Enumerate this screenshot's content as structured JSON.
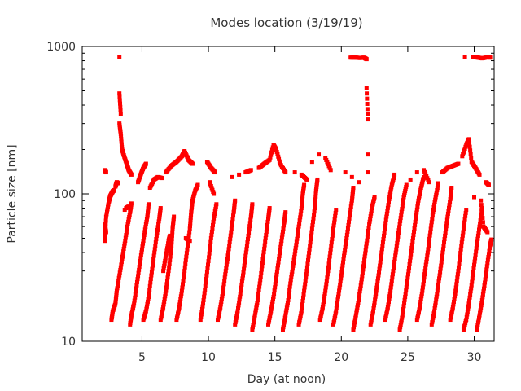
{
  "chart_data": {
    "type": "scatter",
    "title": "Modes location (3/19/19)",
    "xlabel": "Day (at noon)",
    "ylabel": "Particle size [nm]",
    "xlim": [
      0.5,
      31.5
    ],
    "ylim": [
      10,
      1000
    ],
    "y_scale": "log",
    "grid": false,
    "legend": "none",
    "x_ticks": [
      5,
      10,
      15,
      20,
      25,
      30
    ],
    "x_tick_labels": [
      "5",
      "10",
      "15",
      "20",
      "25",
      "30"
    ],
    "y_ticks": [
      10,
      100,
      1000
    ],
    "y_tick_labels": [
      "10",
      "100",
      "1000"
    ],
    "marker_color": "#ff0000",
    "series": [
      {
        "points": [
          [
            2.2,
            145
          ],
          [
            2.3,
            140
          ],
          [
            2.2,
            62
          ],
          [
            2.3,
            55
          ],
          [
            2.2,
            48
          ],
          [
            2.3,
            70
          ],
          [
            2.5,
            88
          ],
          [
            2.6,
            96
          ],
          [
            2.7,
            100
          ],
          [
            2.8,
            104
          ],
          [
            2.9,
            106
          ],
          [
            2.7,
            14
          ],
          [
            2.8,
            16
          ],
          [
            3.0,
            18
          ],
          [
            3.1,
            22
          ],
          [
            3.3,
            28
          ],
          [
            3.5,
            36
          ],
          [
            3.7,
            46
          ],
          [
            3.9,
            60
          ],
          [
            4.1,
            75
          ],
          [
            4.2,
            86
          ],
          [
            3.0,
            112
          ],
          [
            3.1,
            120
          ],
          [
            3.2,
            118
          ],
          [
            3.3,
            850
          ],
          [
            3.3,
            480
          ],
          [
            3.4,
            350
          ],
          [
            3.3,
            300
          ],
          [
            3.4,
            255
          ],
          [
            3.5,
            200
          ],
          [
            3.7,
            175
          ],
          [
            3.9,
            155
          ],
          [
            4.0,
            145
          ],
          [
            4.2,
            135
          ],
          [
            3.8,
            80
          ],
          [
            4.0,
            82
          ],
          [
            3.7,
            78
          ],
          [
            4.1,
            13
          ],
          [
            4.2,
            15
          ],
          [
            4.4,
            18
          ],
          [
            4.6,
            24
          ],
          [
            4.8,
            32
          ],
          [
            5.0,
            42
          ],
          [
            5.2,
            55
          ],
          [
            5.4,
            70
          ],
          [
            5.5,
            85
          ],
          [
            4.7,
            120
          ],
          [
            4.9,
            135
          ],
          [
            5.1,
            150
          ],
          [
            5.3,
            160
          ],
          [
            5.1,
            14
          ],
          [
            5.3,
            16
          ],
          [
            5.5,
            20
          ],
          [
            5.7,
            28
          ],
          [
            5.9,
            38
          ],
          [
            6.1,
            52
          ],
          [
            6.3,
            68
          ],
          [
            6.4,
            80
          ],
          [
            5.6,
            110
          ],
          [
            5.9,
            125
          ],
          [
            6.2,
            130
          ],
          [
            6.5,
            128
          ],
          [
            6.6,
            30
          ],
          [
            6.8,
            38
          ],
          [
            7.0,
            48
          ],
          [
            7.1,
            52
          ],
          [
            6.4,
            14
          ],
          [
            6.6,
            17
          ],
          [
            6.8,
            22
          ],
          [
            7.0,
            30
          ],
          [
            7.2,
            42
          ],
          [
            7.3,
            58
          ],
          [
            7.4,
            70
          ],
          [
            6.8,
            140
          ],
          [
            7.2,
            155
          ],
          [
            7.6,
            165
          ],
          [
            8.0,
            180
          ],
          [
            8.2,
            195
          ],
          [
            8.5,
            170
          ],
          [
            8.8,
            160
          ],
          [
            7.6,
            14
          ],
          [
            7.8,
            17
          ],
          [
            8.0,
            22
          ],
          [
            8.2,
            30
          ],
          [
            8.4,
            42
          ],
          [
            8.6,
            58
          ],
          [
            8.7,
            75
          ],
          [
            8.8,
            90
          ],
          [
            9.0,
            105
          ],
          [
            9.2,
            115
          ],
          [
            8.3,
            50
          ],
          [
            8.6,
            48
          ],
          [
            9.4,
            14
          ],
          [
            9.6,
            18
          ],
          [
            9.8,
            25
          ],
          [
            10.0,
            35
          ],
          [
            10.2,
            50
          ],
          [
            10.4,
            68
          ],
          [
            10.6,
            85
          ],
          [
            9.9,
            165
          ],
          [
            10.2,
            150
          ],
          [
            10.5,
            140
          ],
          [
            10.1,
            120
          ],
          [
            10.4,
            100
          ],
          [
            10.7,
            14
          ],
          [
            10.9,
            17
          ],
          [
            11.1,
            22
          ],
          [
            11.3,
            30
          ],
          [
            11.5,
            40
          ],
          [
            11.7,
            55
          ],
          [
            11.9,
            75
          ],
          [
            12.0,
            90
          ],
          [
            11.8,
            130
          ],
          [
            12.3,
            135
          ],
          [
            12.8,
            140
          ],
          [
            13.2,
            145
          ],
          [
            12.0,
            13
          ],
          [
            12.2,
            16
          ],
          [
            12.4,
            21
          ],
          [
            12.6,
            28
          ],
          [
            12.8,
            38
          ],
          [
            13.0,
            52
          ],
          [
            13.2,
            70
          ],
          [
            13.3,
            85
          ],
          [
            13.3,
            12
          ],
          [
            13.5,
            15
          ],
          [
            13.7,
            19
          ],
          [
            13.9,
            26
          ],
          [
            14.1,
            36
          ],
          [
            14.3,
            50
          ],
          [
            14.5,
            68
          ],
          [
            14.6,
            80
          ],
          [
            13.8,
            150
          ],
          [
            14.2,
            160
          ],
          [
            14.6,
            170
          ],
          [
            14.9,
            215
          ],
          [
            15.1,
            200
          ],
          [
            15.4,
            160
          ],
          [
            15.8,
            140
          ],
          [
            14.5,
            13
          ],
          [
            14.7,
            16
          ],
          [
            14.9,
            20
          ],
          [
            15.1,
            27
          ],
          [
            15.3,
            36
          ],
          [
            15.5,
            48
          ],
          [
            15.7,
            64
          ],
          [
            15.8,
            75
          ],
          [
            15.6,
            12
          ],
          [
            15.8,
            15
          ],
          [
            16.0,
            19
          ],
          [
            16.2,
            26
          ],
          [
            16.4,
            34
          ],
          [
            16.6,
            45
          ],
          [
            16.8,
            60
          ],
          [
            17.0,
            80
          ],
          [
            17.1,
            100
          ],
          [
            17.2,
            115
          ],
          [
            16.5,
            140
          ],
          [
            17.0,
            135
          ],
          [
            17.4,
            125
          ],
          [
            16.8,
            13
          ],
          [
            17.0,
            16
          ],
          [
            17.2,
            22
          ],
          [
            17.4,
            30
          ],
          [
            17.6,
            42
          ],
          [
            17.8,
            58
          ],
          [
            18.0,
            80
          ],
          [
            18.1,
            105
          ],
          [
            18.2,
            125
          ],
          [
            17.8,
            165
          ],
          [
            18.3,
            185
          ],
          [
            18.8,
            175
          ],
          [
            19.2,
            145
          ],
          [
            18.4,
            14
          ],
          [
            18.6,
            17
          ],
          [
            18.8,
            22
          ],
          [
            19.0,
            30
          ],
          [
            19.2,
            42
          ],
          [
            19.4,
            58
          ],
          [
            19.6,
            78
          ],
          [
            19.4,
            13
          ],
          [
            19.6,
            16
          ],
          [
            19.8,
            21
          ],
          [
            20.0,
            28
          ],
          [
            20.2,
            38
          ],
          [
            20.4,
            50
          ],
          [
            20.6,
            68
          ],
          [
            20.8,
            90
          ],
          [
            20.9,
            110
          ],
          [
            20.3,
            140
          ],
          [
            20.8,
            130
          ],
          [
            21.3,
            120
          ],
          [
            20.7,
            840
          ],
          [
            21.1,
            840
          ],
          [
            21.4,
            835
          ],
          [
            21.7,
            840
          ],
          [
            21.9,
            820
          ],
          [
            21.9,
            520
          ],
          [
            22.0,
            320
          ],
          [
            22.0,
            185
          ],
          [
            22.0,
            140
          ],
          [
            20.9,
            12
          ],
          [
            21.1,
            15
          ],
          [
            21.3,
            19
          ],
          [
            21.5,
            25
          ],
          [
            21.7,
            34
          ],
          [
            21.9,
            46
          ],
          [
            22.1,
            62
          ],
          [
            22.3,
            80
          ],
          [
            22.5,
            95
          ],
          [
            22.2,
            13
          ],
          [
            22.4,
            16
          ],
          [
            22.6,
            21
          ],
          [
            22.8,
            28
          ],
          [
            23.0,
            38
          ],
          [
            23.2,
            52
          ],
          [
            23.4,
            70
          ],
          [
            23.6,
            92
          ],
          [
            23.8,
            115
          ],
          [
            24.0,
            135
          ],
          [
            23.3,
            14
          ],
          [
            23.5,
            17
          ],
          [
            23.7,
            22
          ],
          [
            23.9,
            30
          ],
          [
            24.1,
            40
          ],
          [
            24.3,
            54
          ],
          [
            24.5,
            72
          ],
          [
            24.7,
            95
          ],
          [
            24.9,
            115
          ],
          [
            24.4,
            12
          ],
          [
            24.6,
            15
          ],
          [
            24.8,
            20
          ],
          [
            25.0,
            27
          ],
          [
            25.2,
            37
          ],
          [
            25.4,
            50
          ],
          [
            25.6,
            68
          ],
          [
            25.8,
            90
          ],
          [
            26.0,
            110
          ],
          [
            26.2,
            130
          ],
          [
            25.2,
            125
          ],
          [
            25.7,
            140
          ],
          [
            26.2,
            145
          ],
          [
            26.6,
            120
          ],
          [
            25.7,
            14
          ],
          [
            25.9,
            17
          ],
          [
            26.1,
            22
          ],
          [
            26.3,
            30
          ],
          [
            26.5,
            40
          ],
          [
            26.7,
            55
          ],
          [
            26.9,
            75
          ],
          [
            27.1,
            95
          ],
          [
            27.3,
            118
          ],
          [
            26.8,
            13
          ],
          [
            27.0,
            16
          ],
          [
            27.2,
            21
          ],
          [
            27.4,
            28
          ],
          [
            27.6,
            38
          ],
          [
            27.8,
            52
          ],
          [
            28.0,
            70
          ],
          [
            28.2,
            92
          ],
          [
            28.3,
            110
          ],
          [
            27.6,
            140
          ],
          [
            28.0,
            150
          ],
          [
            28.4,
            155
          ],
          [
            28.8,
            160
          ],
          [
            28.2,
            14
          ],
          [
            28.4,
            17
          ],
          [
            28.6,
            22
          ],
          [
            28.8,
            30
          ],
          [
            29.0,
            42
          ],
          [
            29.2,
            58
          ],
          [
            29.4,
            78
          ],
          [
            29.1,
            180
          ],
          [
            29.4,
            215
          ],
          [
            29.6,
            235
          ],
          [
            29.8,
            165
          ],
          [
            30.1,
            150
          ],
          [
            30.4,
            135
          ],
          [
            29.3,
            850
          ],
          [
            29.9,
            845
          ],
          [
            30.3,
            840
          ],
          [
            30.6,
            830
          ],
          [
            31.0,
            845
          ],
          [
            31.2,
            840
          ],
          [
            29.2,
            12
          ],
          [
            29.4,
            14
          ],
          [
            29.6,
            18
          ],
          [
            29.8,
            24
          ],
          [
            30.0,
            33
          ],
          [
            30.2,
            45
          ],
          [
            30.4,
            60
          ],
          [
            30.6,
            80
          ],
          [
            30.2,
            12
          ],
          [
            30.4,
            15
          ],
          [
            30.6,
            19
          ],
          [
            30.8,
            25
          ],
          [
            31.0,
            34
          ],
          [
            31.2,
            45
          ],
          [
            31.3,
            49
          ],
          [
            30.9,
            120
          ],
          [
            31.1,
            115
          ],
          [
            30.0,
            95
          ],
          [
            30.5,
            90
          ],
          [
            30.7,
            60
          ],
          [
            31.0,
            55
          ]
        ]
      }
    ]
  }
}
